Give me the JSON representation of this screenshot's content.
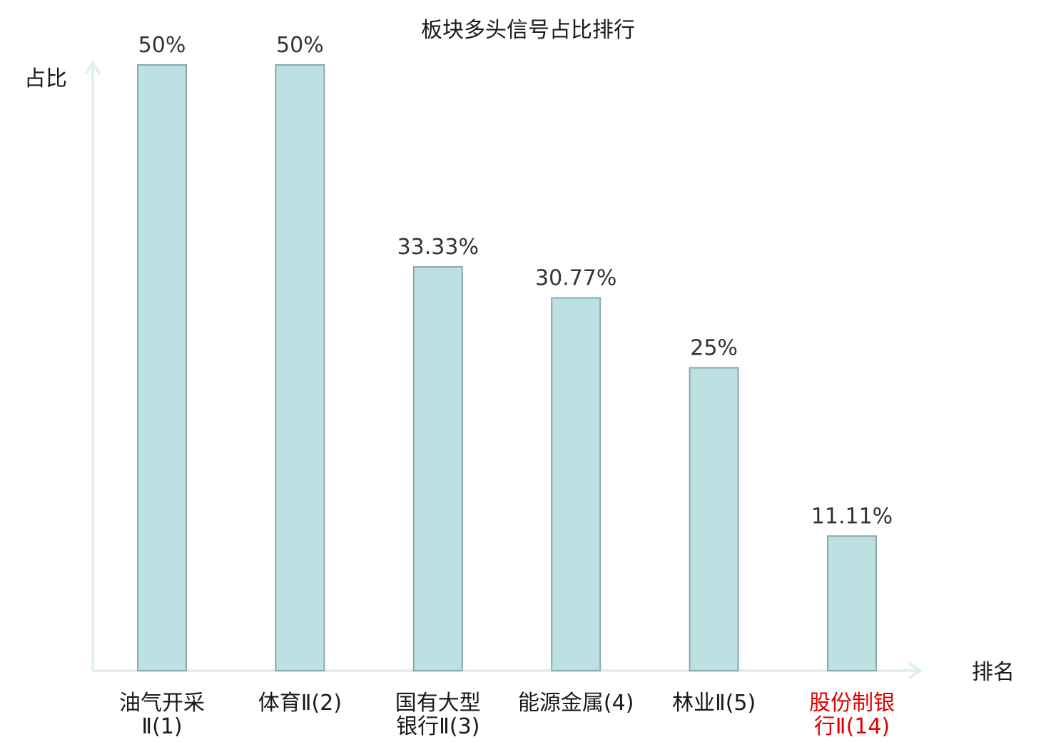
{
  "chart_data": {
    "type": "bar",
    "title": "板块多头信号占比排行",
    "ylabel": "占比",
    "xlabel": "排名",
    "ylim": [
      0,
      50
    ],
    "categories": [
      [
        "油气开采",
        "Ⅱ(1)"
      ],
      [
        "体育Ⅱ(2)"
      ],
      [
        "国有大型",
        "银行Ⅱ(3)"
      ],
      [
        "能源金属(4)"
      ],
      [
        "林业Ⅱ(5)"
      ],
      [
        "股份制银",
        "行Ⅱ(14)"
      ]
    ],
    "values": [
      50,
      50,
      33.33,
      30.77,
      25,
      11.11
    ],
    "value_labels": [
      "50%",
      "50%",
      "33.33%",
      "30.77%",
      "25%",
      "11.11%"
    ],
    "highlight_index": 5,
    "colors": {
      "bar_fill": "#bde0e3",
      "bar_stroke": "#8aa8ab",
      "axis": "#dff0ee",
      "highlight_text": "#e00000",
      "text": "#1a1a1a"
    },
    "grid": false,
    "legend": "none"
  }
}
